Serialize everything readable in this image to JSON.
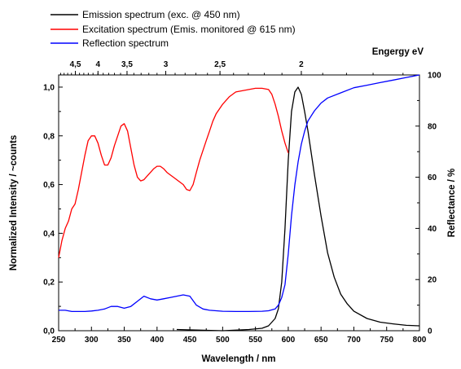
{
  "chart_data": {
    "type": "line",
    "xlabel": "Wavelength / nm",
    "ylabel_left": "Normalized Intensity / ~counts",
    "ylabel_right": "Reflectance / %",
    "top_axis_label": "Engergy eV",
    "xlim": [
      250,
      800
    ],
    "ylim_left": [
      0,
      1.05
    ],
    "ylim_right": [
      0,
      100
    ],
    "grid": false,
    "legend_placement": "top-left, above plot",
    "x_ticks": [
      250,
      300,
      350,
      400,
      450,
      500,
      550,
      600,
      650,
      700,
      750,
      800
    ],
    "x_tick_labels": [
      "250",
      "300",
      "350",
      "400",
      "450",
      "500",
      "550",
      "600",
      "650",
      "700",
      "750",
      "800"
    ],
    "y_left_ticks": [
      0,
      0.2,
      0.4,
      0.6,
      0.8,
      1.0
    ],
    "y_left_tick_labels": [
      "0,0",
      "0,2",
      "0,4",
      "0,6",
      "0,8",
      "1,0"
    ],
    "y_right_ticks": [
      0,
      20,
      40,
      60,
      80,
      100
    ],
    "y_right_tick_labels": [
      "0",
      "20",
      "40",
      "60",
      "80",
      "100"
    ],
    "top_ticks": [
      4.5,
      4,
      3.5,
      3,
      2.5,
      2
    ],
    "top_tick_labels": [
      "4,5",
      "4",
      "3,5",
      "3",
      "2,5",
      "2"
    ],
    "series": [
      {
        "name": "Emission spectrum (exc. @ 450 nm)",
        "color": "#000000",
        "axis": "left",
        "x": [
          430,
          500,
          540,
          560,
          570,
          580,
          585,
          590,
          595,
          600,
          605,
          610,
          615,
          620,
          625,
          630,
          640,
          650,
          660,
          670,
          680,
          690,
          700,
          720,
          740,
          760,
          780,
          800
        ],
        "y": [
          0.005,
          0.0,
          0.005,
          0.01,
          0.02,
          0.05,
          0.09,
          0.2,
          0.42,
          0.7,
          0.9,
          0.98,
          1.0,
          0.97,
          0.9,
          0.82,
          0.64,
          0.47,
          0.32,
          0.22,
          0.15,
          0.11,
          0.08,
          0.05,
          0.035,
          0.028,
          0.022,
          0.02
        ]
      },
      {
        "name": "Excitation spectrum (Emis. monitored @ 615 nm)",
        "color": "#ff0000",
        "axis": "left",
        "x": [
          250,
          255,
          260,
          265,
          270,
          275,
          280,
          285,
          290,
          295,
          300,
          305,
          310,
          315,
          320,
          325,
          330,
          335,
          340,
          345,
          350,
          355,
          360,
          365,
          370,
          375,
          380,
          385,
          390,
          395,
          400,
          405,
          410,
          415,
          420,
          425,
          430,
          435,
          440,
          445,
          450,
          455,
          460,
          465,
          470,
          475,
          480,
          485,
          490,
          500,
          510,
          520,
          530,
          540,
          550,
          560,
          570,
          575,
          580,
          585,
          590,
          595,
          600
        ],
        "y": [
          0.3,
          0.37,
          0.42,
          0.45,
          0.5,
          0.52,
          0.58,
          0.65,
          0.72,
          0.78,
          0.8,
          0.8,
          0.77,
          0.72,
          0.68,
          0.68,
          0.71,
          0.76,
          0.8,
          0.84,
          0.85,
          0.82,
          0.75,
          0.68,
          0.63,
          0.615,
          0.62,
          0.635,
          0.65,
          0.665,
          0.675,
          0.675,
          0.665,
          0.65,
          0.64,
          0.63,
          0.62,
          0.61,
          0.6,
          0.58,
          0.575,
          0.6,
          0.65,
          0.7,
          0.74,
          0.78,
          0.82,
          0.86,
          0.89,
          0.93,
          0.96,
          0.98,
          0.985,
          0.99,
          0.995,
          0.995,
          0.99,
          0.97,
          0.93,
          0.88,
          0.82,
          0.77,
          0.73
        ]
      },
      {
        "name": "Reflection spectrum",
        "color": "#0000ff",
        "axis": "right",
        "x": [
          250,
          260,
          270,
          280,
          290,
          300,
          310,
          320,
          330,
          340,
          350,
          360,
          370,
          380,
          390,
          400,
          410,
          420,
          430,
          440,
          450,
          460,
          470,
          480,
          500,
          520,
          540,
          560,
          570,
          580,
          585,
          590,
          595,
          600,
          605,
          610,
          615,
          620,
          625,
          630,
          640,
          650,
          660,
          680,
          700,
          720,
          740,
          760,
          780,
          800
        ],
        "y": [
          8,
          8,
          7.5,
          7.5,
          7.5,
          7.7,
          8,
          8.5,
          9.5,
          9.5,
          8.8,
          9.5,
          11.5,
          13.5,
          12.5,
          12,
          12.5,
          13,
          13.5,
          14,
          13.5,
          10,
          8.5,
          8,
          7.6,
          7.5,
          7.5,
          7.6,
          7.8,
          8.5,
          10,
          13,
          18,
          30,
          45,
          57,
          66,
          73,
          78,
          82,
          86,
          89,
          91,
          93,
          95,
          96,
          97,
          98,
          99,
          100
        ]
      }
    ]
  }
}
